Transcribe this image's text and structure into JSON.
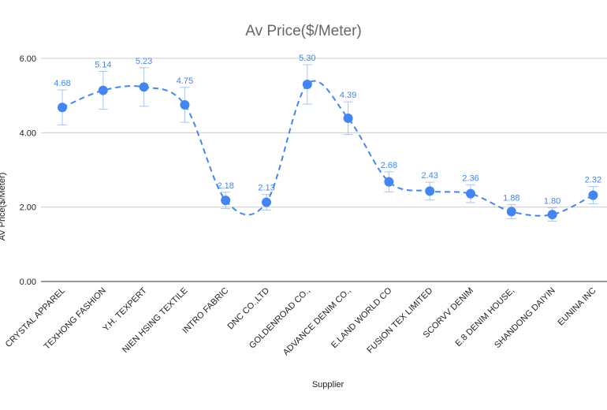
{
  "chart_data": {
    "type": "line",
    "title": "Av Price($/Meter)",
    "xlabel": "Supplier",
    "ylabel": "AV Price($/Meter)",
    "ylim": [
      0,
      6
    ],
    "yticks": [
      0,
      2,
      4,
      6
    ],
    "ytick_labels": [
      "0.00",
      "2.00",
      "4.00",
      "6.00"
    ],
    "grid": true,
    "smooth": true,
    "line_style": "dashed",
    "color": "#4285f4",
    "error_bar_color": "#aac4f2",
    "categories": [
      "CRYSTAL APPAREL",
      "TEXHONG FASHION",
      "Y.H. TEXPERT",
      "NIEN HSING TEXTILE",
      "INTRO FABRIC",
      "DNC CO.,LTD",
      "GOLDENROAD CO.,",
      "ADVANCE DENIM CO.,",
      "E.LAND WORLD CO",
      "FUSION TEX LIMITED",
      "SCORVV DENIM",
      "E.8 DENIM HOUSE,",
      "SHANDONG DAIYIN",
      "EUNINA INC"
    ],
    "values": [
      4.68,
      5.14,
      5.23,
      4.75,
      2.18,
      2.13,
      5.3,
      4.39,
      2.68,
      2.43,
      2.36,
      1.88,
      1.8,
      2.32
    ],
    "data_labels": [
      "4.68",
      "5.14",
      "5.23",
      "4.75",
      "2.18",
      "2.13",
      "5.30",
      "4.39",
      "2.68",
      "2.43",
      "2.36",
      "1.88",
      "1.80",
      "2.32"
    ],
    "error_low": [
      4.21,
      4.63,
      4.71,
      4.28,
      1.96,
      1.92,
      4.77,
      3.95,
      2.41,
      2.19,
      2.12,
      1.69,
      1.62,
      2.09
    ],
    "error_high": [
      5.15,
      5.65,
      5.75,
      5.22,
      2.4,
      2.34,
      5.83,
      4.83,
      2.95,
      2.67,
      2.6,
      2.07,
      1.98,
      2.55
    ]
  }
}
